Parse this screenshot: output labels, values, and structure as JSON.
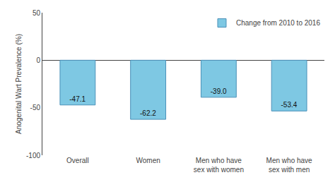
{
  "chart_data": {
    "type": "bar",
    "categories": [
      "Overall",
      "Women",
      "Men who have\nsex with women",
      "Men who have\nsex with men"
    ],
    "series": [
      {
        "name": "Change from 2010 to 2016",
        "color": "#7ec8e3",
        "values": [
          -47.1,
          -62.2,
          -39.0,
          -53.4
        ],
        "value_labels": [
          "-47.1",
          "-62.2",
          "-39.0",
          "-53.4"
        ]
      }
    ],
    "ylabel": "Anogenital Wart Prevalence (%)",
    "ylim": [
      -100,
      50
    ],
    "yticks": [
      -100,
      -50,
      0,
      50
    ],
    "data_labels": true,
    "grid": false,
    "legend": "upper right"
  }
}
